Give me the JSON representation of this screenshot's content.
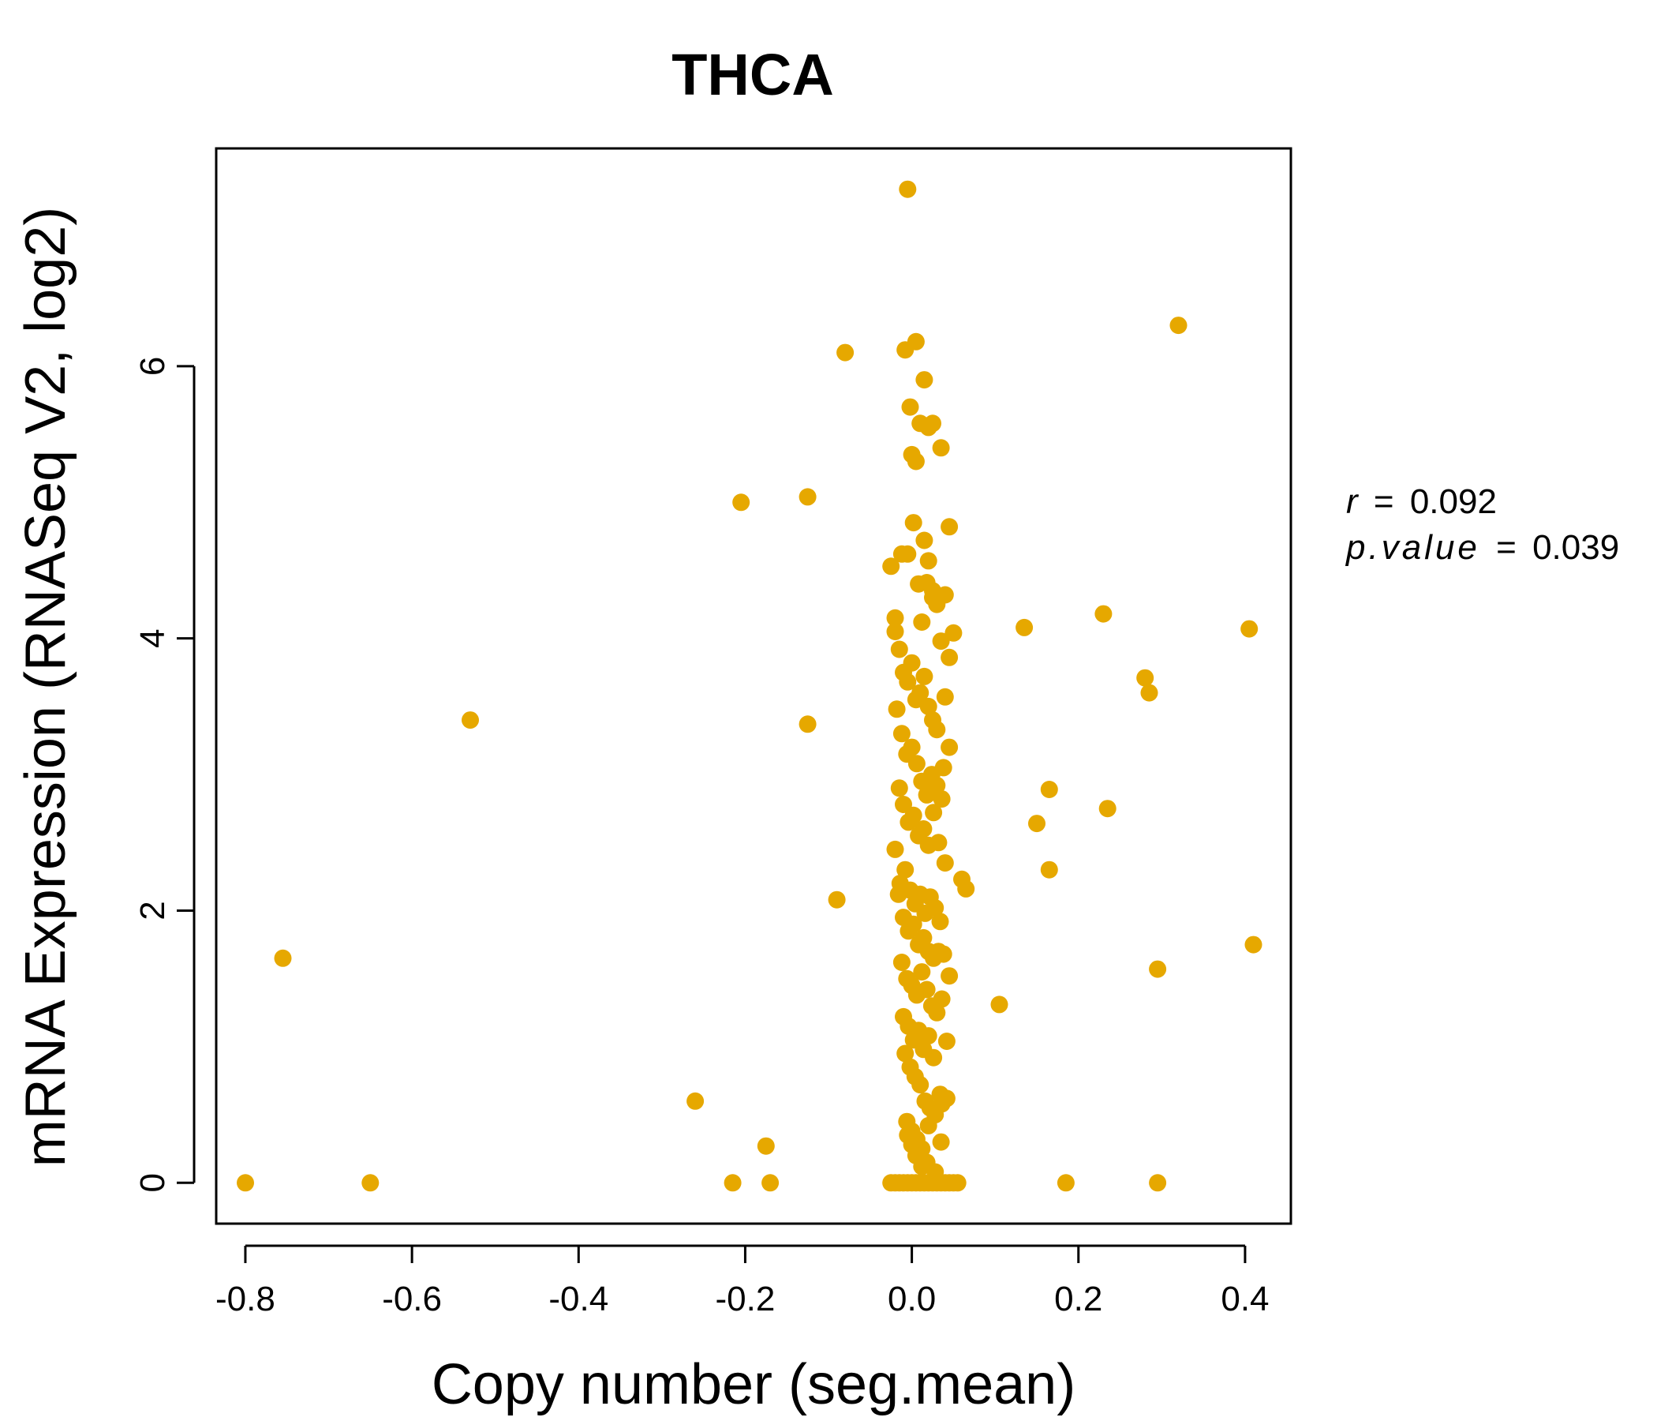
{
  "chart_data": {
    "type": "scatter",
    "title": "THCA",
    "xlabel": "Copy number (seg.mean)",
    "ylabel": "mRNA Expression (RNASeq V2, log2)",
    "xlim": [
      -0.835,
      0.455
    ],
    "ylim": [
      -0.3,
      7.6
    ],
    "x_ticks": [
      -0.8,
      -0.6,
      -0.4,
      -0.2,
      0.0,
      0.2,
      0.4
    ],
    "x_tick_labels": [
      "-0.8",
      "-0.6",
      "-0.4",
      "-0.2",
      "0.0",
      "0.2",
      "0.4"
    ],
    "y_ticks": [
      0,
      2,
      4,
      6
    ],
    "y_tick_labels": [
      "0",
      "2",
      "4",
      "6"
    ],
    "grid": false,
    "point_color": "#E6A800",
    "stats": {
      "r_label": "r",
      "r_value": "0.092",
      "p_label": "p.value",
      "p_value": "0.039",
      "eq": "="
    },
    "series": [
      {
        "x": [
          -0.8,
          -0.65,
          -0.755,
          -0.53,
          -0.26,
          -0.215,
          -0.17,
          -0.175,
          -0.205,
          -0.125,
          -0.125,
          -0.09,
          -0.08,
          -0.005,
          0.005,
          0.015,
          0.02,
          0.025,
          0.035,
          0.045,
          0.06,
          0.065,
          0.105,
          0.135,
          0.15,
          0.165,
          0.165,
          0.185,
          0.23,
          0.235,
          0.28,
          0.285,
          0.295,
          0.295,
          0.32,
          0.405,
          0.41,
          -0.025,
          -0.02,
          -0.015,
          -0.01,
          -0.005,
          0.0,
          0.005,
          0.01,
          0.015,
          0.02,
          0.025,
          0.03,
          0.035,
          0.04,
          0.045,
          0.05,
          0.055,
          -0.008,
          -0.002,
          0.0,
          0.005,
          0.01,
          0.015,
          0.02,
          0.025,
          0.03,
          0.04,
          0.05,
          0.045,
          -0.025,
          -0.02,
          -0.012,
          -0.005,
          0.002,
          0.008,
          0.012,
          0.018,
          0.025,
          0.035,
          0.04,
          0.045,
          -0.02,
          -0.015,
          -0.01,
          -0.005,
          0.0,
          0.005,
          0.01,
          0.015,
          0.02,
          0.025,
          0.03,
          0.038,
          -0.018,
          -0.012,
          -0.006,
          0.0,
          0.006,
          0.012,
          0.018,
          0.024,
          0.03,
          0.036,
          -0.015,
          -0.01,
          -0.004,
          0.002,
          0.008,
          0.014,
          0.02,
          0.026,
          0.032,
          0.04,
          -0.02,
          -0.014,
          -0.008,
          -0.002,
          0.004,
          0.01,
          0.016,
          0.022,
          0.028,
          0.034,
          -0.016,
          -0.01,
          -0.004,
          0.002,
          0.008,
          0.014,
          0.02,
          0.026,
          0.032,
          0.038,
          0.045,
          -0.012,
          -0.006,
          0.0,
          0.006,
          0.012,
          0.018,
          0.024,
          0.03,
          0.036,
          0.042,
          -0.01,
          -0.004,
          0.002,
          0.008,
          0.014,
          0.02,
          0.026,
          0.034,
          0.042,
          -0.008,
          -0.002,
          0.004,
          0.01,
          0.016,
          0.022,
          0.028,
          0.036,
          -0.006,
          0.0,
          0.006,
          0.012,
          0.018,
          -0.005,
          0.0,
          0.005,
          0.012,
          0.02,
          0.028,
          0.035
        ],
        "y": [
          0,
          0,
          1.65,
          3.4,
          0.6,
          0,
          0,
          0.27,
          5.0,
          5.04,
          3.37,
          2.08,
          6.1,
          7.3,
          6.18,
          5.9,
          5.55,
          5.58,
          5.4,
          4.82,
          2.23,
          2.16,
          1.31,
          4.08,
          2.64,
          2.89,
          2.3,
          0,
          4.18,
          2.75,
          3.71,
          3.6,
          1.57,
          0,
          6.3,
          4.07,
          1.75,
          0,
          0,
          0,
          0,
          0,
          0,
          0,
          0,
          0,
          0,
          0,
          0,
          0,
          0,
          0,
          0,
          0,
          6.12,
          5.7,
          5.35,
          5.3,
          5.58,
          4.72,
          4.57,
          4.35,
          4.25,
          4.32,
          4.04,
          3.86,
          4.53,
          4.15,
          4.62,
          4.62,
          4.85,
          4.4,
          4.12,
          4.41,
          4.3,
          3.98,
          3.57,
          3.2,
          4.05,
          3.92,
          3.75,
          3.68,
          3.82,
          3.55,
          3.6,
          3.72,
          3.5,
          3.4,
          3.33,
          3.05,
          3.48,
          3.3,
          3.15,
          3.2,
          3.08,
          2.95,
          2.85,
          3.0,
          2.92,
          2.82,
          2.9,
          2.78,
          2.65,
          2.7,
          2.55,
          2.6,
          2.48,
          2.72,
          2.5,
          2.35,
          2.45,
          2.2,
          2.3,
          2.15,
          2.05,
          2.12,
          1.98,
          2.1,
          2.02,
          1.92,
          2.12,
          1.95,
          1.85,
          1.9,
          1.75,
          1.8,
          1.7,
          1.65,
          1.7,
          1.68,
          1.52,
          1.62,
          1.5,
          1.45,
          1.38,
          1.55,
          1.42,
          1.3,
          1.25,
          1.35,
          1.04,
          1.22,
          1.15,
          1.05,
          1.12,
          0.98,
          1.08,
          0.92,
          0.65,
          0.62,
          0.95,
          0.85,
          0.78,
          0.72,
          0.6,
          0.55,
          0.5,
          0.58,
          0.45,
          0.38,
          0.32,
          0.25,
          0.15,
          0.35,
          0.28,
          0.2,
          0.12,
          0.42,
          0.08,
          0.3
        ]
      }
    ]
  }
}
